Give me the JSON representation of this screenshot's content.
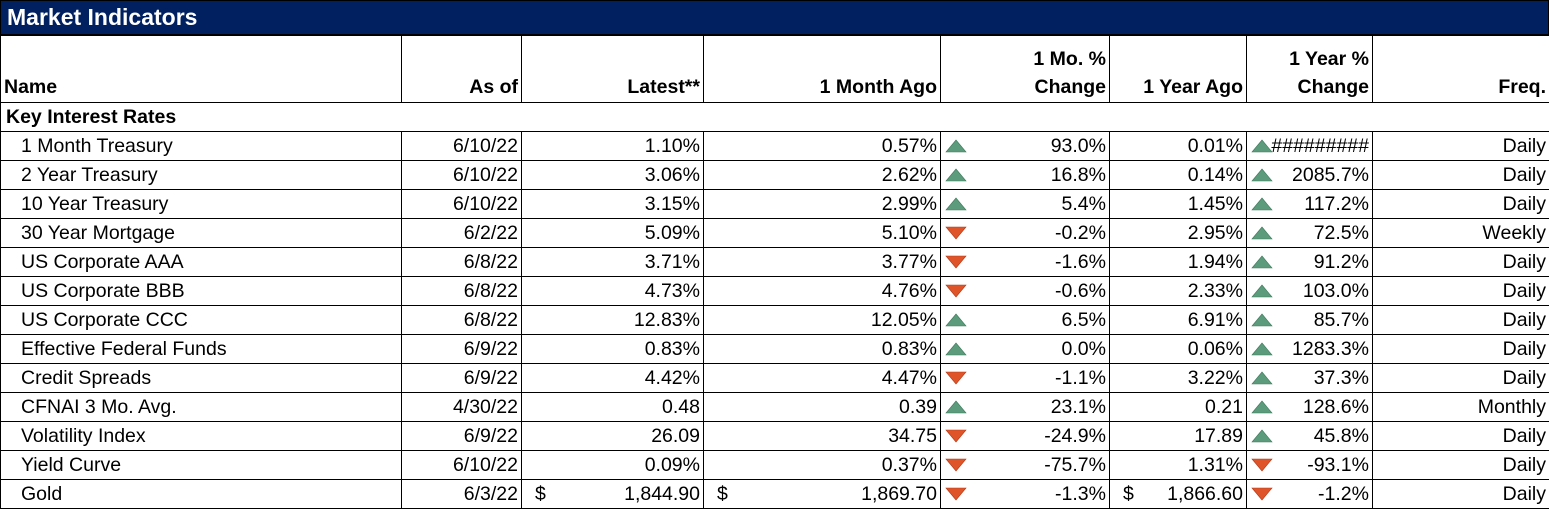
{
  "title": "Market Indicators",
  "headers": {
    "name": "Name",
    "as_of": "As of",
    "latest": "Latest**",
    "month_ago": "1 Month Ago",
    "month_change_line1": "1 Mo. %",
    "month_change_line2": "Change",
    "year_ago": "1 Year Ago",
    "year_change_line1": "1 Year %",
    "year_change_line2": "Change",
    "freq": "Freq."
  },
  "section": "Key Interest Rates",
  "colors": {
    "title_bg": "#002060",
    "up": "#5c9c7c",
    "down": "#e0542a"
  },
  "rows": [
    {
      "name": "1 Month Treasury",
      "as_of": "6/10/22",
      "latest": "1.10%",
      "month_ago": "0.57%",
      "m_dir": "up",
      "m_chg": "93.0%",
      "year_ago": "0.01%",
      "y_dir": "up",
      "y_chg": "#########",
      "freq": "Daily"
    },
    {
      "name": "2 Year Treasury",
      "as_of": "6/10/22",
      "latest": "3.06%",
      "month_ago": "2.62%",
      "m_dir": "up",
      "m_chg": "16.8%",
      "year_ago": "0.14%",
      "y_dir": "up",
      "y_chg": "2085.7%",
      "freq": "Daily"
    },
    {
      "name": "10 Year Treasury",
      "as_of": "6/10/22",
      "latest": "3.15%",
      "month_ago": "2.99%",
      "m_dir": "up",
      "m_chg": "5.4%",
      "year_ago": "1.45%",
      "y_dir": "up",
      "y_chg": "117.2%",
      "freq": "Daily"
    },
    {
      "name": "30 Year Mortgage",
      "as_of": "6/2/22",
      "latest": "5.09%",
      "month_ago": "5.10%",
      "m_dir": "down",
      "m_chg": "-0.2%",
      "year_ago": "2.95%",
      "y_dir": "up",
      "y_chg": "72.5%",
      "freq": "Weekly"
    },
    {
      "name": "US Corporate AAA",
      "as_of": "6/8/22",
      "latest": "3.71%",
      "month_ago": "3.77%",
      "m_dir": "down",
      "m_chg": "-1.6%",
      "year_ago": "1.94%",
      "y_dir": "up",
      "y_chg": "91.2%",
      "freq": "Daily"
    },
    {
      "name": "US Corporate BBB",
      "as_of": "6/8/22",
      "latest": "4.73%",
      "month_ago": "4.76%",
      "m_dir": "down",
      "m_chg": "-0.6%",
      "year_ago": "2.33%",
      "y_dir": "up",
      "y_chg": "103.0%",
      "freq": "Daily"
    },
    {
      "name": "US Corporate CCC",
      "as_of": "6/8/22",
      "latest": "12.83%",
      "month_ago": "12.05%",
      "m_dir": "up",
      "m_chg": "6.5%",
      "year_ago": "6.91%",
      "y_dir": "up",
      "y_chg": "85.7%",
      "freq": "Daily"
    },
    {
      "name": "Effective Federal Funds",
      "as_of": "6/9/22",
      "latest": "0.83%",
      "month_ago": "0.83%",
      "m_dir": "up",
      "m_chg": "0.0%",
      "year_ago": "0.06%",
      "y_dir": "up",
      "y_chg": "1283.3%",
      "freq": "Daily"
    },
    {
      "name": "Credit Spreads",
      "as_of": "6/9/22",
      "latest": "4.42%",
      "month_ago": "4.47%",
      "m_dir": "down",
      "m_chg": "-1.1%",
      "year_ago": "3.22%",
      "y_dir": "up",
      "y_chg": "37.3%",
      "freq": "Daily"
    },
    {
      "name": "CFNAI 3 Mo. Avg.",
      "as_of": "4/30/22",
      "latest": "0.48",
      "month_ago": "0.39",
      "m_dir": "up",
      "m_chg": "23.1%",
      "year_ago": "0.21",
      "y_dir": "up",
      "y_chg": "128.6%",
      "freq": "Monthly"
    },
    {
      "name": "Volatility Index",
      "as_of": "6/9/22",
      "latest": "26.09",
      "month_ago": "34.75",
      "m_dir": "down",
      "m_chg": "-24.9%",
      "year_ago": "17.89",
      "y_dir": "up",
      "y_chg": "45.8%",
      "freq": "Daily"
    },
    {
      "name": "Yield Curve",
      "as_of": "6/10/22",
      "latest": "0.09%",
      "month_ago": "0.37%",
      "m_dir": "down",
      "m_chg": "-75.7%",
      "year_ago": "1.31%",
      "y_dir": "down",
      "y_chg": "-93.1%",
      "freq": "Daily"
    },
    {
      "name": "Gold",
      "as_of": "6/3/22",
      "latest": "1,844.90",
      "latest_cur": "$",
      "month_ago": "1,869.70",
      "month_ago_cur": "$",
      "m_dir": "down",
      "m_chg": "-1.3%",
      "year_ago": "1,866.60",
      "year_ago_cur": "$",
      "y_dir": "down",
      "y_chg": "-1.2%",
      "freq": "Daily"
    }
  ]
}
